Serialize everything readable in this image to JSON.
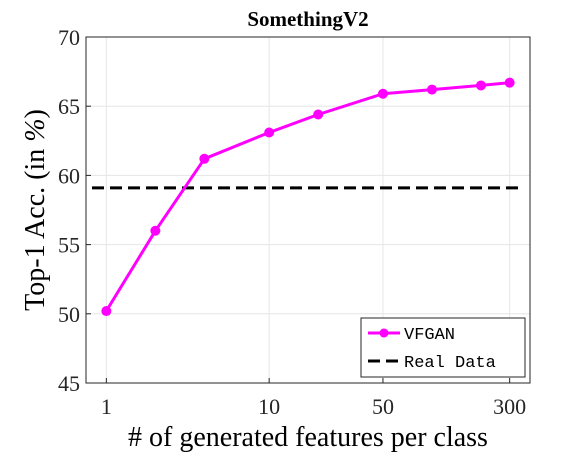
{
  "chart_data": {
    "type": "line",
    "title": "SomethingV2",
    "xlabel": "# of generated features per class",
    "ylabel_prefix": "Top-1 Acc. (in ",
    "ylabel_unit": "%",
    "ylabel_suffix": ")",
    "x_scale": "log",
    "xlim": [
      0.75,
      400
    ],
    "ylim": [
      45,
      70
    ],
    "x_ticks": [
      1,
      10,
      50,
      300
    ],
    "x_tick_labels": [
      "1",
      "10",
      "50",
      "300"
    ],
    "y_ticks": [
      45,
      50,
      55,
      60,
      65,
      70
    ],
    "y_tick_labels": [
      "45",
      "50",
      "55",
      "60",
      "65",
      "70"
    ],
    "grid": true,
    "legend_position": "bottom-right",
    "series": [
      {
        "name": "VFGAN",
        "color": "#ff00ff",
        "style": "solid",
        "marker": "circle",
        "x": [
          1,
          2,
          4,
          10,
          20,
          50,
          100,
          200,
          300
        ],
        "y": [
          50.2,
          56.0,
          61.2,
          63.1,
          64.4,
          65.9,
          66.2,
          66.5,
          66.7
        ]
      },
      {
        "name": "Real Data",
        "color": "#000000",
        "style": "dashed",
        "marker": "none",
        "y_const": 59.1
      }
    ]
  }
}
